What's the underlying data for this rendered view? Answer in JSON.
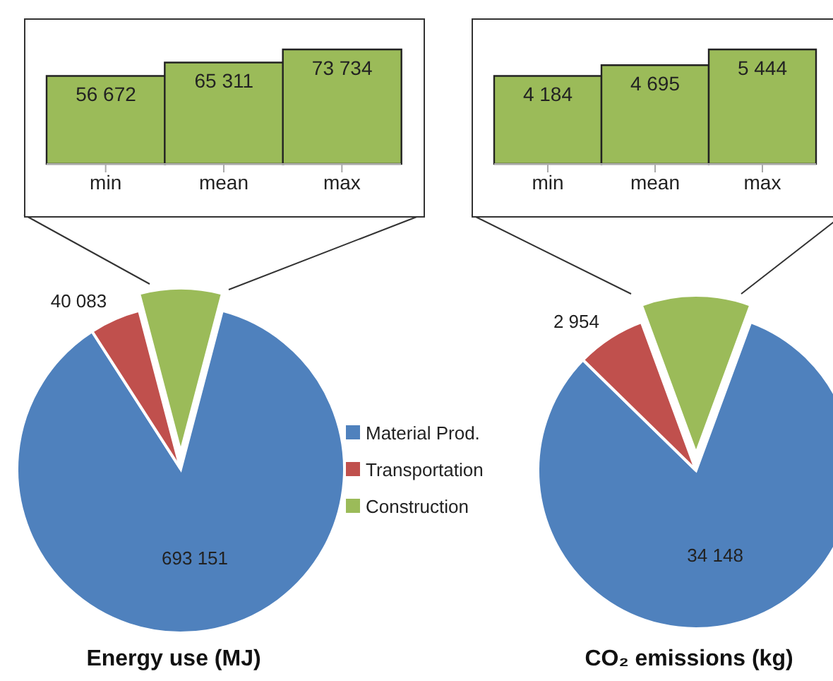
{
  "chart_data": [
    {
      "type": "pie",
      "title": "Energy use (MJ)",
      "categories": [
        "Material Prod.",
        "Transportation",
        "Construction"
      ],
      "values": [
        693151,
        40083,
        65311
      ],
      "colors": [
        "#4f81bd",
        "#c0504d",
        "#9bbb59"
      ],
      "value_labels": [
        "693 151",
        "40 083",
        null
      ],
      "legend": "right"
    },
    {
      "type": "bar",
      "categories": [
        "min",
        "mean",
        "max"
      ],
      "values": [
        56672,
        65311,
        73734
      ],
      "color": "#9bbb59",
      "value_labels": [
        "56 672",
        "65 311",
        "73 734"
      ]
    },
    {
      "type": "pie",
      "title": "CO₂ emissions (kg)",
      "categories": [
        null,
        null,
        null
      ],
      "values": [
        34148,
        2954,
        4695
      ],
      "colors": [
        "#4f81bd",
        "#c0504d",
        "#9bbb59"
      ],
      "value_labels": [
        "34 148",
        "2 954",
        null
      ]
    },
    {
      "type": "bar",
      "categories": [
        "min",
        "mean",
        "max"
      ],
      "values": [
        4184,
        4695,
        5444
      ],
      "color": "#9bbb59",
      "value_labels": [
        "4 184",
        "4 695",
        "5 444"
      ]
    }
  ]
}
